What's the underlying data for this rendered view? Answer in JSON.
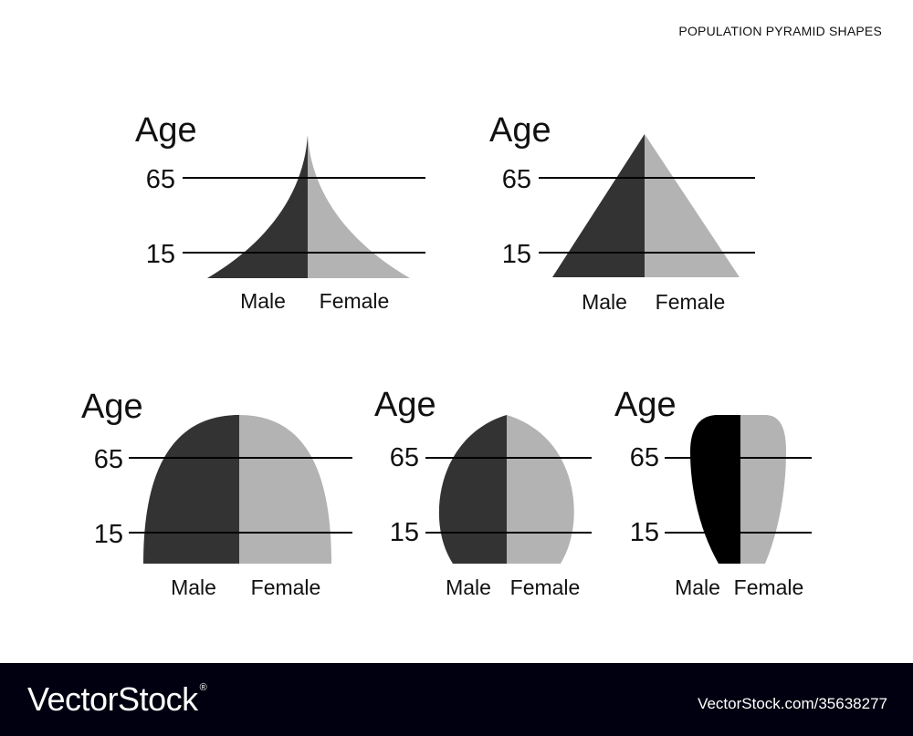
{
  "page_title": "POPULATION PYRAMID SHAPES",
  "colors": {
    "male": "#333333",
    "female": "#b3b3b3",
    "male_dark": "#000000",
    "line": "#000000",
    "footer_bg": "#000010"
  },
  "pyramids": [
    {
      "shape": "expansive-concave",
      "age_label": "Age",
      "lines": [
        "65",
        "15"
      ],
      "male_label": "Male",
      "female_label": "Female",
      "male_color": "#333333"
    },
    {
      "shape": "triangular",
      "age_label": "Age",
      "lines": [
        "65",
        "15"
      ],
      "male_label": "Male",
      "female_label": "Female",
      "male_color": "#333333"
    },
    {
      "shape": "stationary-dome",
      "age_label": "Age",
      "lines": [
        "65",
        "15"
      ],
      "male_label": "Male",
      "female_label": "Female",
      "male_color": "#333333"
    },
    {
      "shape": "pointed-dome",
      "age_label": "Age",
      "lines": [
        "65",
        "15"
      ],
      "male_label": "Male",
      "female_label": "Female",
      "male_color": "#333333"
    },
    {
      "shape": "constrictive-teardrop",
      "age_label": "Age",
      "lines": [
        "65",
        "15"
      ],
      "male_label": "Male",
      "female_label": "Female",
      "male_color": "#000000"
    }
  ],
  "footer": {
    "logo": "VectorStock",
    "registered_mark": "®",
    "reference": "VectorStock.com/35638277"
  }
}
